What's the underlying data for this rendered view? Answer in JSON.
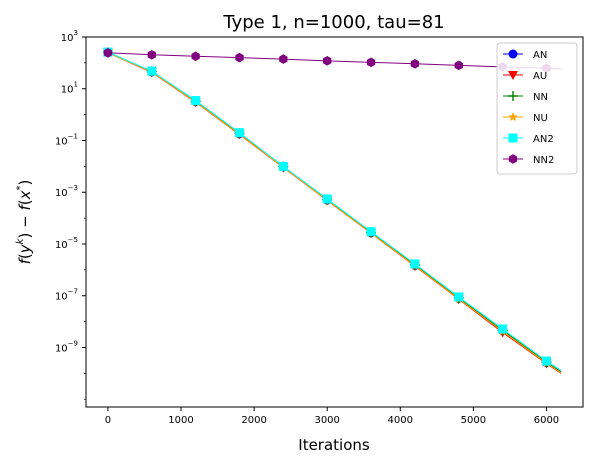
{
  "chart_data": {
    "type": "line",
    "title": "Type 1, n=1000, tau=81",
    "xlabel": "Iterations",
    "ylabel": "f(y^k) − f(x^*)",
    "ylabel_parts": {
      "f1": "f",
      "p1": "(",
      "y": "y",
      "k": "k",
      "p2": ") − ",
      "f2": "f",
      "p3": "(",
      "x": "x",
      "star": "*",
      "p4": ")"
    },
    "x_scale": "linear",
    "y_scale": "log",
    "xlim": [
      -300,
      6500
    ],
    "ylim_exp": [
      -11.3,
      3
    ],
    "x_ticks": [
      0,
      1000,
      2000,
      3000,
      4000,
      5000,
      6000
    ],
    "x_tick_labels": [
      "0",
      "1000",
      "2000",
      "3000",
      "4000",
      "5000",
      "6000"
    ],
    "y_ticks_exp": [
      3,
      1,
      -1,
      -3,
      -5,
      -7,
      -9
    ],
    "y_tick_bases": [
      "10",
      "10",
      "10",
      "10",
      "10",
      "10",
      "10"
    ],
    "y_tick_exps": [
      "3",
      "1",
      "−1",
      "−3",
      "−5",
      "−7",
      "−9"
    ],
    "grid": false,
    "legend_position": "top-right",
    "series": [
      {
        "name": "AN",
        "color": "#0000ff",
        "marker": "circle",
        "x": [
          0,
          600,
          1200,
          1800,
          2400,
          3000,
          3600,
          4200,
          4800,
          5400,
          6000,
          6200
        ],
        "y": [
          250,
          45,
          3.2,
          0.18,
          0.0095,
          0.0005,
          2.7e-05,
          1.5e-06,
          8e-08,
          4.5e-09,
          2.6e-10,
          1.1e-10
        ],
        "marker_x": [
          0,
          600,
          1200,
          1800,
          2400,
          3000,
          3600,
          4200,
          4800,
          5400,
          6000
        ]
      },
      {
        "name": "AU",
        "color": "#ff0000",
        "marker": "triangle-down",
        "x": [
          0,
          600,
          1200,
          1800,
          2400,
          3000,
          3600,
          4200,
          4800,
          5400,
          6000,
          6200
        ],
        "y": [
          245,
          43,
          3.0,
          0.17,
          0.009,
          0.00048,
          2.6e-05,
          1.4e-06,
          7.3e-08,
          3.8e-09,
          2.4e-10,
          1e-10
        ],
        "marker_x": [
          0,
          600,
          1200,
          1800,
          2400,
          3000,
          3600,
          4200,
          4800,
          5400,
          6000
        ]
      },
      {
        "name": "NN",
        "color": "#008000",
        "marker": "plus",
        "x": [
          0,
          600,
          1200,
          1800,
          2400,
          3000,
          3600,
          4200,
          4800,
          5400,
          6000,
          6200
        ],
        "y": [
          255,
          46,
          3.3,
          0.19,
          0.0098,
          0.00052,
          2.8e-05,
          1.55e-06,
          8.2e-08,
          4.6e-09,
          2.7e-10,
          1.15e-10
        ],
        "marker_x": [
          0,
          600,
          1200,
          1800,
          2400,
          3000,
          3600,
          4200,
          4800,
          5400,
          6000
        ]
      },
      {
        "name": "NU",
        "color": "#ffa500",
        "marker": "star",
        "x": [
          0,
          600,
          1200,
          1800,
          2400,
          3000,
          3600,
          4200,
          4800,
          5400,
          6000,
          6200
        ],
        "y": [
          248,
          44,
          3.1,
          0.175,
          0.0092,
          0.00049,
          2.65e-05,
          1.45e-06,
          7.6e-08,
          4.2e-09,
          2.5e-10,
          1.05e-10
        ],
        "marker_x": [
          0,
          600,
          1200,
          1800,
          2400,
          3000,
          3600,
          4200,
          4800,
          5400,
          6000
        ]
      },
      {
        "name": "AN2",
        "color": "#00ffff",
        "marker": "square",
        "x": [
          0,
          600,
          1200,
          1800,
          2400,
          3000,
          3600,
          4200,
          4800,
          5400,
          6000,
          6200
        ],
        "y": [
          260,
          48,
          3.5,
          0.2,
          0.01,
          0.00055,
          3e-05,
          1.7e-06,
          9e-08,
          5.2e-09,
          3e-10,
          1.3e-10
        ],
        "marker_x": [
          0,
          600,
          1200,
          1800,
          2400,
          3000,
          3600,
          4200,
          4800,
          5400,
          6000
        ]
      },
      {
        "name": "NN2",
        "color": "#800080",
        "marker": "hexagon",
        "x": [
          0,
          600,
          1200,
          1800,
          2400,
          3000,
          3600,
          4200,
          4800,
          5400,
          6000,
          6200
        ],
        "y": [
          245,
          205,
          180,
          160,
          140,
          120,
          105,
          92,
          80,
          70,
          62,
          58
        ],
        "marker_x": [
          0,
          600,
          1200,
          1800,
          2400,
          3000,
          3600,
          4200,
          4800,
          5400,
          6000
        ]
      }
    ]
  }
}
